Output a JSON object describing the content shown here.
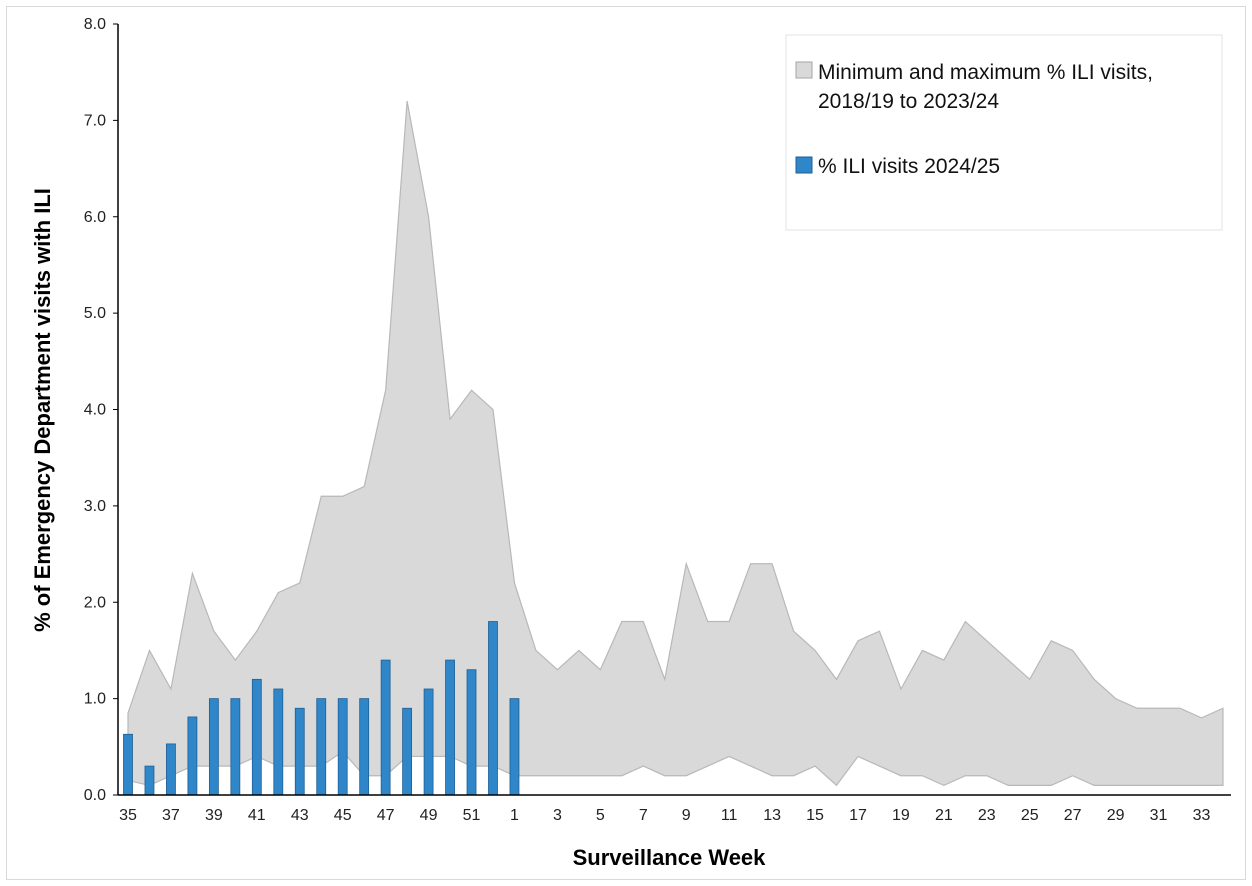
{
  "chart_data": {
    "type": "bar",
    "xlabel": "Surveillance Week",
    "ylabel": "% of Emergency Department  visits with ILI",
    "ylim": [
      0,
      8
    ],
    "yticks": [
      "0.0",
      "1.0",
      "2.0",
      "3.0",
      "4.0",
      "5.0",
      "6.0",
      "7.0",
      "8.0"
    ],
    "weeks": [
      35,
      36,
      37,
      38,
      39,
      40,
      41,
      42,
      43,
      44,
      45,
      46,
      47,
      48,
      49,
      50,
      51,
      52,
      1,
      2,
      3,
      4,
      5,
      6,
      7,
      8,
      9,
      10,
      11,
      12,
      13,
      14,
      15,
      16,
      17,
      18,
      19,
      20,
      21,
      22,
      23,
      24,
      25,
      26,
      27,
      28,
      29,
      30,
      31,
      32,
      33,
      34
    ],
    "xtick_labels": [
      "35",
      "37",
      "39",
      "41",
      "43",
      "45",
      "47",
      "49",
      "51",
      "1",
      "3",
      "5",
      "7",
      "9",
      "11",
      "13",
      "15",
      "17",
      "19",
      "21",
      "23",
      "25",
      "27",
      "29",
      "31",
      "33"
    ],
    "legend_position": "top-right",
    "series": [
      {
        "name": "Minimum and maximum % ILI visits, 2018/19 to 2023/24",
        "kind": "range-area",
        "color": "#d9d9d9",
        "max": [
          0.85,
          1.5,
          1.1,
          2.3,
          1.7,
          1.4,
          1.7,
          2.1,
          2.2,
          3.1,
          3.1,
          3.2,
          4.2,
          7.2,
          6.0,
          3.9,
          4.2,
          4.0,
          2.2,
          1.5,
          1.3,
          1.5,
          1.3,
          1.8,
          1.8,
          1.2,
          2.4,
          1.8,
          1.8,
          2.4,
          2.4,
          1.7,
          1.5,
          1.2,
          1.6,
          1.7,
          1.1,
          1.5,
          1.4,
          1.8,
          1.6,
          1.4,
          1.2,
          1.6,
          1.5,
          1.2,
          1.0,
          0.9,
          0.9,
          0.9,
          0.8,
          0.9
        ],
        "min": [
          0.15,
          0.1,
          0.2,
          0.3,
          0.3,
          0.3,
          0.4,
          0.3,
          0.3,
          0.3,
          0.45,
          0.2,
          0.2,
          0.4,
          0.4,
          0.4,
          0.3,
          0.3,
          0.2,
          0.2,
          0.2,
          0.2,
          0.2,
          0.2,
          0.3,
          0.2,
          0.2,
          0.3,
          0.4,
          0.3,
          0.2,
          0.2,
          0.3,
          0.1,
          0.4,
          0.3,
          0.2,
          0.2,
          0.1,
          0.2,
          0.2,
          0.1,
          0.1,
          0.1,
          0.2,
          0.1,
          0.1,
          0.1,
          0.1,
          0.1,
          0.1,
          0.1
        ]
      },
      {
        "name": "% ILI visits 2024/25",
        "kind": "bar",
        "color": "#2f86c9",
        "values": [
          0.63,
          0.3,
          0.53,
          0.81,
          1.0,
          1.0,
          1.2,
          1.1,
          0.9,
          1.0,
          1.0,
          1.0,
          1.4,
          0.9,
          1.1,
          1.4,
          1.3,
          1.8,
          1.0
        ]
      }
    ]
  }
}
